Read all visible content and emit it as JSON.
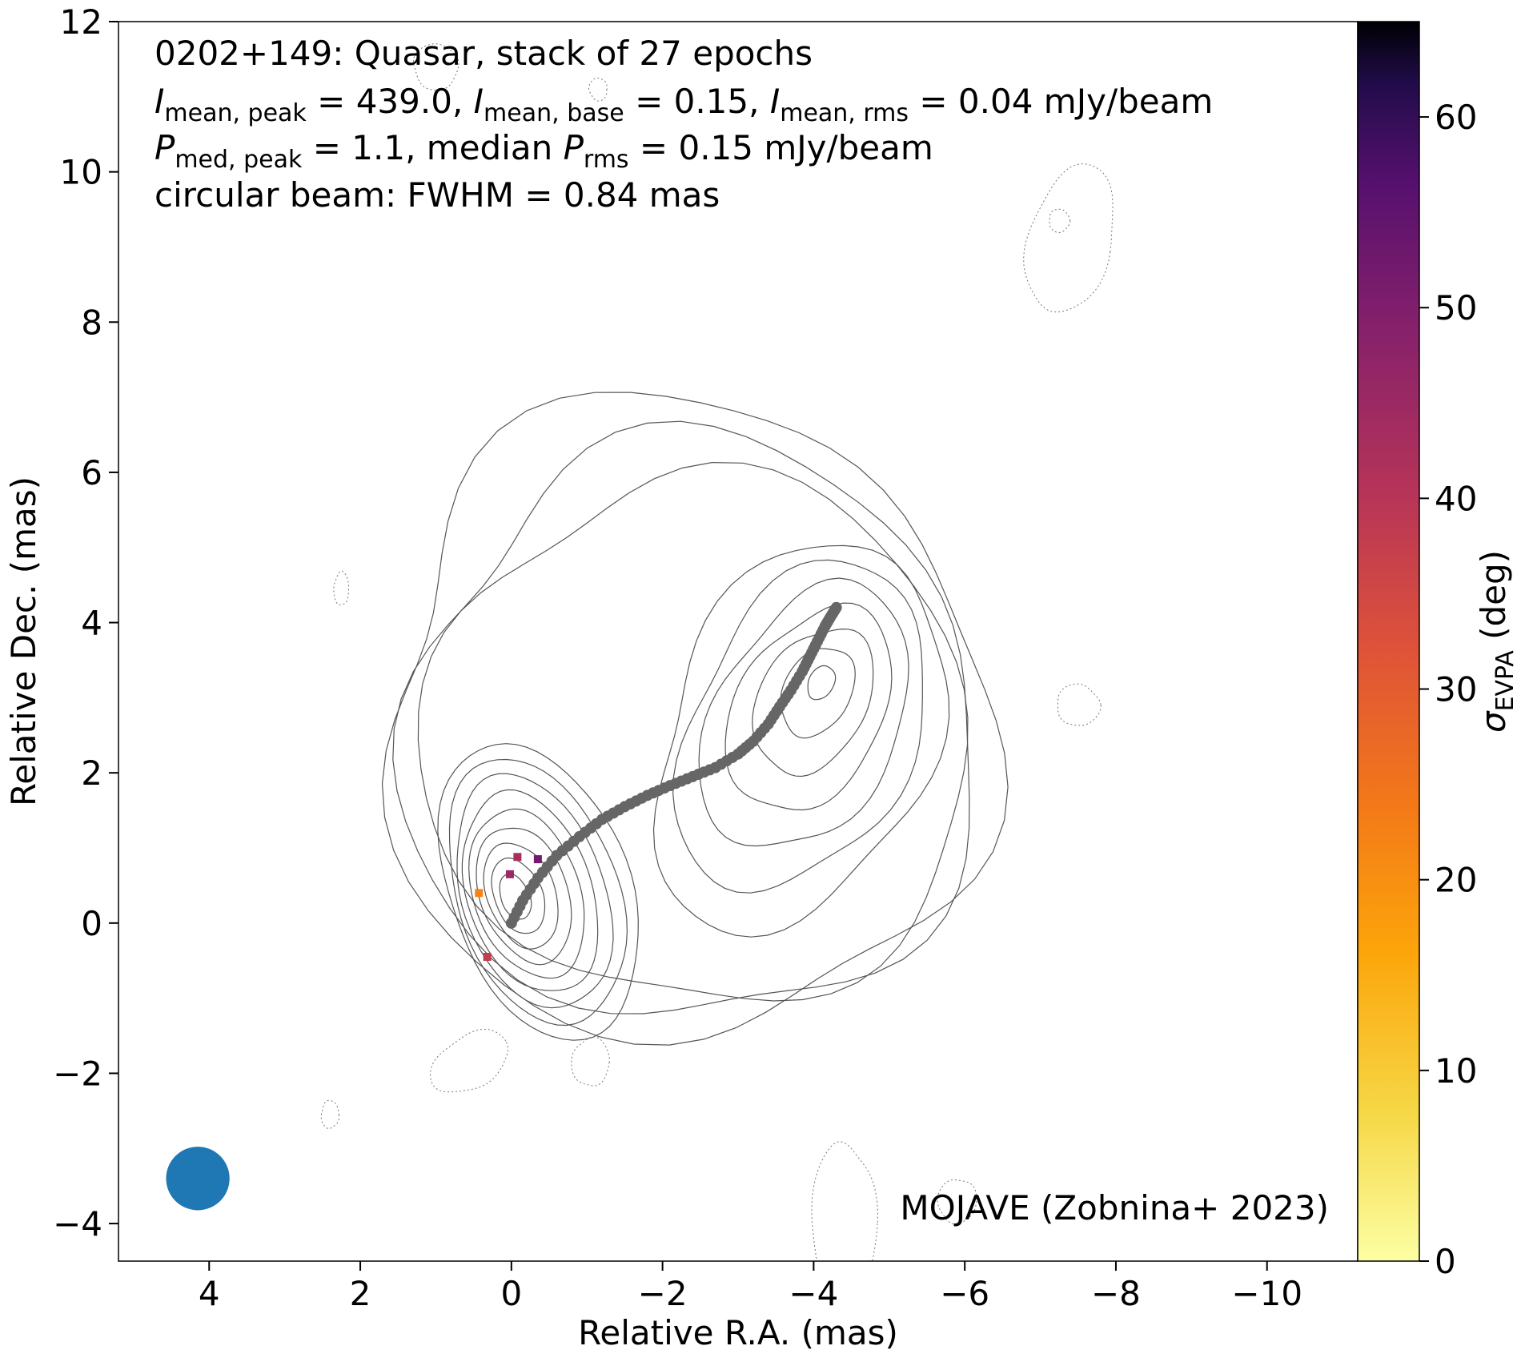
{
  "chart_data": {
    "type": "contour",
    "title_lines": [
      "0202+149: Quasar, stack of 27 epochs",
      "I_mean,peak = 439.0, I_mean,base = 0.15, I_mean,rms = 0.04 mJy/beam",
      "P_med,peak = 1.1, median P_rms = 0.15 mJy/beam",
      "circular beam: FWHM = 0.84 mas"
    ],
    "title": {
      "line1": "0202+149: Quasar, stack of 27 epochs",
      "line2": {
        "I": "I",
        "sub_peak": "mean, peak",
        "mid1": " = 439.0, ",
        "sub_base": "mean, base",
        "mid2": " = 0.15, ",
        "sub_rms": "mean, rms",
        "end": " = 0.04 mJy/beam"
      },
      "line3": {
        "P": "P",
        "sub_peak": "med, peak",
        "mid": " = 1.1, median ",
        "sub_rms": "rms",
        "end": " = 0.15 mJy/beam"
      },
      "line4": "circular beam: FWHM = 0.84 mas"
    },
    "xlabel": "Relative R.A. (mas)",
    "ylabel": "Relative Dec. (mas)",
    "colorbar_label": {
      "sigma": "σ",
      "sub": "EVPA",
      "unit": " (deg)"
    },
    "credit": "MOJAVE (Zobnina+ 2023)",
    "xlim": [
      5.2,
      -11.2
    ],
    "ylim": [
      -4.5,
      12
    ],
    "xticks": [
      4,
      2,
      0,
      -2,
      -4,
      -6,
      -8,
      -10
    ],
    "yticks": [
      -4,
      -2,
      0,
      2,
      4,
      6,
      8,
      10,
      12
    ],
    "colorbar": {
      "cmap": "inferno_r",
      "range": [
        0,
        65
      ],
      "ticks": [
        0,
        10,
        20,
        30,
        40,
        50,
        60
      ]
    },
    "ridge_line": {
      "color": "#666666",
      "x": [
        0,
        -0.15,
        -0.35,
        -0.6,
        -0.9,
        -1.2,
        -1.5,
        -1.8,
        -2.1,
        -2.4,
        -2.7,
        -3.0,
        -3.2,
        -3.4,
        -3.55,
        -3.7,
        -3.85,
        -3.95,
        -4.05,
        -4.15,
        -4.22,
        -4.3
      ],
      "y": [
        0,
        0.3,
        0.6,
        0.9,
        1.15,
        1.38,
        1.55,
        1.7,
        1.83,
        1.95,
        2.07,
        2.25,
        2.42,
        2.65,
        2.88,
        3.1,
        3.35,
        3.55,
        3.75,
        3.95,
        4.07,
        4.2
      ]
    },
    "evpa_pixels": [
      {
        "x": -0.08,
        "y": 0.88,
        "sigma": 43
      },
      {
        "x": 0.02,
        "y": 0.65,
        "sigma": 45
      },
      {
        "x": -0.35,
        "y": 0.85,
        "sigma": 52
      },
      {
        "x": 0.43,
        "y": 0.4,
        "sigma": 22
      },
      {
        "x": 0.32,
        "y": -0.45,
        "sigma": 38
      }
    ],
    "beam": {
      "x": 4.15,
      "y": -3.4,
      "fwhm_mas": 0.84,
      "color": "#1f77b4"
    },
    "contours": {
      "count_positive": 12,
      "negative_style": "dotted",
      "positive_style": "solid"
    }
  }
}
